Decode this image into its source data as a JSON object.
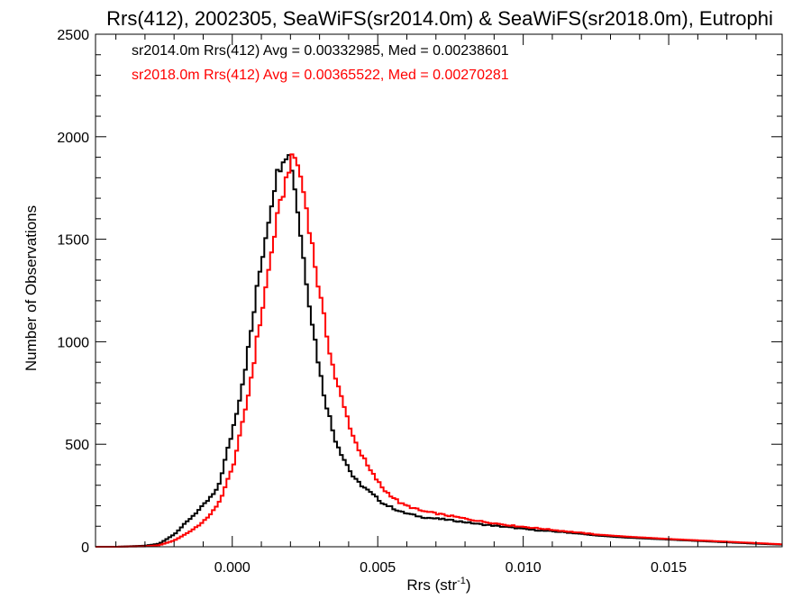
{
  "chart_data": {
    "type": "line",
    "title": "Rrs(412), 2002305, SeaWiFS(sr2014.0m) & SeaWiFS(sr2018.0m), Eutrophi",
    "xlabel": "Rrs (str",
    "xlabel_sup": "-1",
    "xlabel_close": ")",
    "ylabel": "Number of Observations",
    "xlim": [
      -0.0047,
      0.0189
    ],
    "ylim": [
      0,
      2500
    ],
    "xticks": [
      0.0,
      0.005,
      0.01,
      0.015
    ],
    "xtick_labels": [
      "0.000",
      "0.005",
      "0.010",
      "0.015"
    ],
    "yticks": [
      0,
      500,
      1000,
      1500,
      2000,
      2500
    ],
    "ytick_labels": [
      "0",
      "500",
      "1000",
      "1500",
      "2000",
      "2500"
    ],
    "grid": false,
    "legend_position": "top-left",
    "annotations": [
      {
        "text": "sr2014.0m Rrs(412) Avg = 0.00332985, Med = 0.00238601",
        "color": "#000000"
      },
      {
        "text": "sr2018.0m Rrs(412) Avg = 0.00365522, Med = 0.00270281",
        "color": "#ff0000"
      }
    ],
    "series": [
      {
        "color": "#000000",
        "x": [
          -0.0047,
          -0.004,
          -0.003,
          -0.0025,
          -0.002,
          -0.0015,
          -0.001,
          -0.0005,
          0.0,
          0.0003,
          0.0006,
          0.0009,
          0.0012,
          0.0015,
          0.0018,
          0.002,
          0.0022,
          0.0025,
          0.0028,
          0.0031,
          0.0035,
          0.0038,
          0.0042,
          0.0047,
          0.0052,
          0.0058,
          0.0065,
          0.0075,
          0.0085,
          0.0095,
          0.0105,
          0.0115,
          0.0125,
          0.0135,
          0.015,
          0.0165,
          0.018,
          0.0189
        ],
        "y": [
          0,
          0,
          5,
          15,
          60,
          130,
          200,
          280,
          560,
          760,
          1000,
          1300,
          1560,
          1800,
          1920,
          1900,
          1700,
          1350,
          1050,
          780,
          540,
          440,
          330,
          270,
          210,
          170,
          145,
          130,
          110,
          95,
          80,
          70,
          55,
          45,
          35,
          25,
          15,
          10
        ]
      },
      {
        "color": "#ff0000",
        "x": [
          -0.0047,
          -0.004,
          -0.003,
          -0.0025,
          -0.002,
          -0.0015,
          -0.001,
          -0.0005,
          0.0,
          0.0003,
          0.0006,
          0.0009,
          0.0012,
          0.0015,
          0.0018,
          0.002,
          0.0022,
          0.0025,
          0.0028,
          0.0031,
          0.0035,
          0.0038,
          0.0042,
          0.0047,
          0.0052,
          0.0058,
          0.0065,
          0.0075,
          0.0085,
          0.0095,
          0.0105,
          0.0115,
          0.0125,
          0.0135,
          0.015,
          0.0165,
          0.018,
          0.0189
        ],
        "y": [
          0,
          0,
          2,
          8,
          30,
          70,
          120,
          200,
          380,
          560,
          780,
          1050,
          1300,
          1570,
          1760,
          1880,
          1900,
          1700,
          1420,
          1150,
          850,
          700,
          520,
          380,
          280,
          210,
          175,
          150,
          125,
          105,
          90,
          75,
          60,
          50,
          38,
          28,
          18,
          12
        ]
      }
    ]
  }
}
